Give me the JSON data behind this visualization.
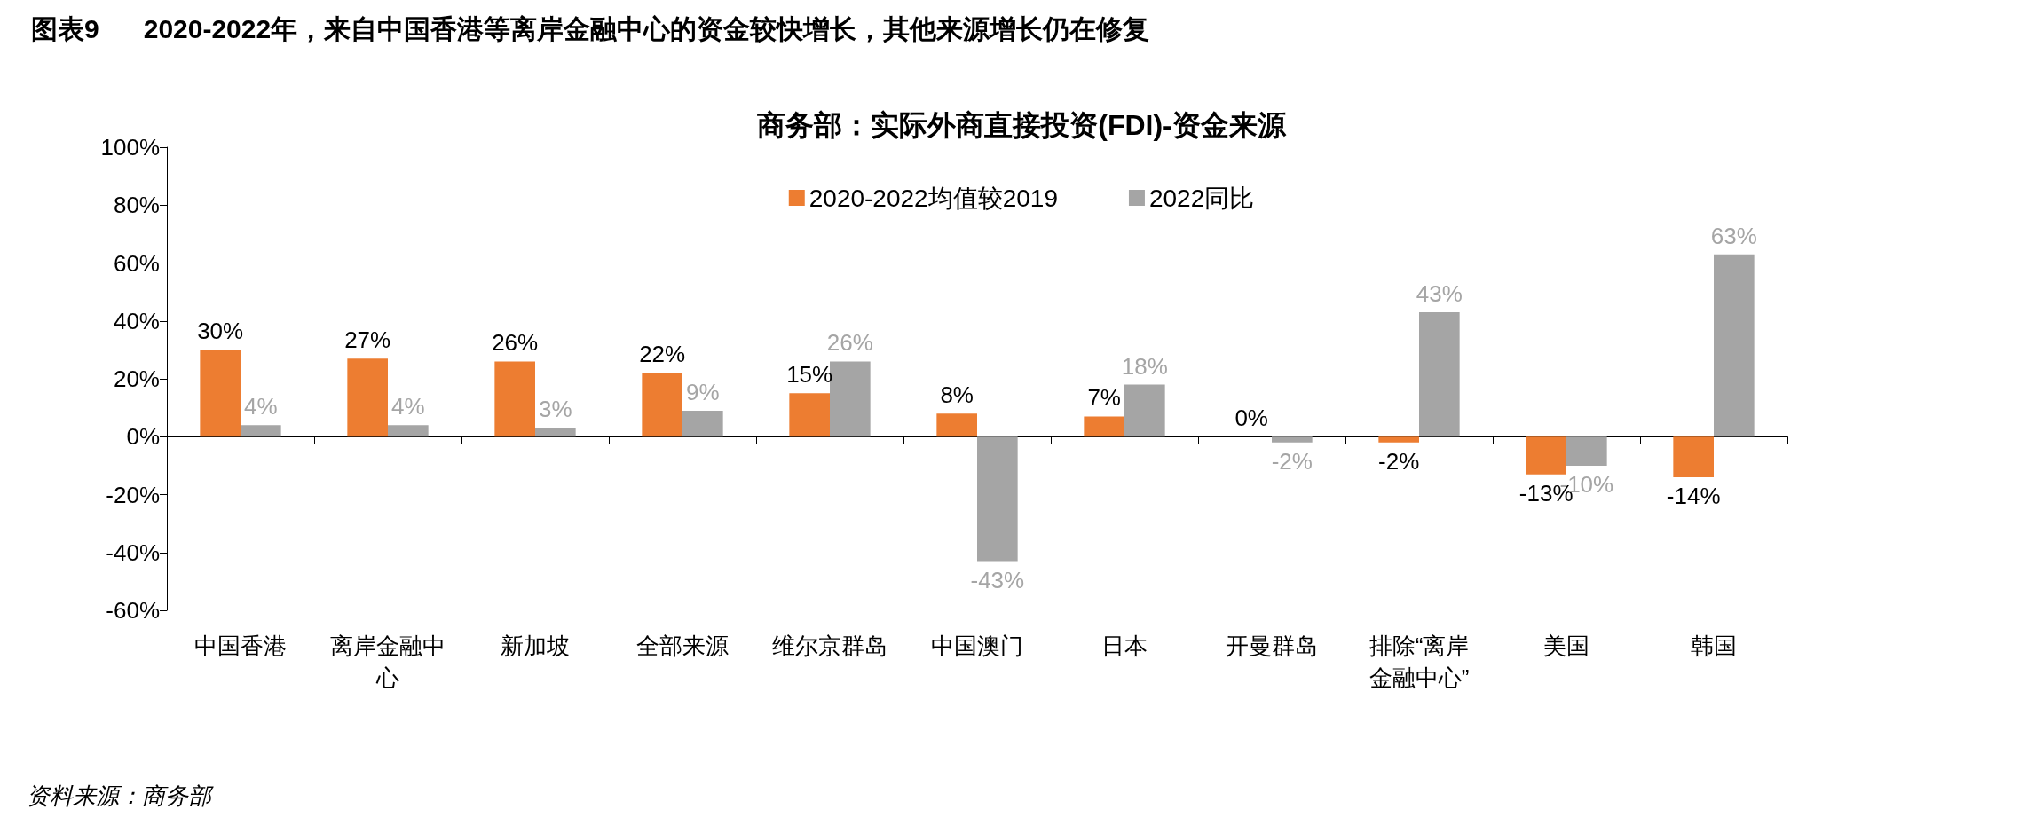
{
  "chart_data": {
    "type": "bar",
    "title": "图表9      2020-2022年，来自中国香港等离岸金融中心的资金较快增长，其他来源增长仍在修复",
    "subtitle": "商务部：实际外商直接投资(FDI)-资金来源",
    "categories": [
      "中国香港",
      "离岸金融中心",
      "新加坡",
      "全部来源",
      "维尔京群岛",
      "中国澳门",
      "日本",
      "开曼群岛",
      "排除“离岸金融中心”",
      "美国",
      "韩国"
    ],
    "series": [
      {
        "name": "2020-2022均值较2019",
        "color": "#ed7d31",
        "values": [
          30,
          27,
          26,
          22,
          15,
          8,
          7,
          0,
          -2,
          -13,
          -14
        ],
        "value_labels": [
          "30%",
          "27%",
          "26%",
          "22%",
          "15%",
          "8%",
          "7%",
          "0%",
          "-2%",
          "-13%",
          "-14%"
        ]
      },
      {
        "name": "2022同比",
        "color": "#a5a5a5",
        "values": [
          4,
          4,
          3,
          9,
          26,
          -43,
          18,
          -2,
          43,
          -10,
          63
        ],
        "value_labels": [
          "4%",
          "4%",
          "3%",
          "9%",
          "26%",
          "-43%",
          "18%",
          "-2%",
          "43%",
          "-10%",
          "63%"
        ]
      }
    ],
    "ylim": [
      -60,
      100
    ],
    "yticks": [
      {
        "value": -60,
        "label": "-60%"
      },
      {
        "value": -40,
        "label": "-40%"
      },
      {
        "value": -20,
        "label": "-20%"
      },
      {
        "value": 0,
        "label": "0%"
      },
      {
        "value": 20,
        "label": "20%"
      },
      {
        "value": 40,
        "label": "40%"
      },
      {
        "value": 60,
        "label": "60%"
      },
      {
        "value": 80,
        "label": "80%"
      },
      {
        "value": 100,
        "label": "100%"
      }
    ],
    "legend": "top",
    "annotations": [
      "资料来源：商务部"
    ]
  }
}
